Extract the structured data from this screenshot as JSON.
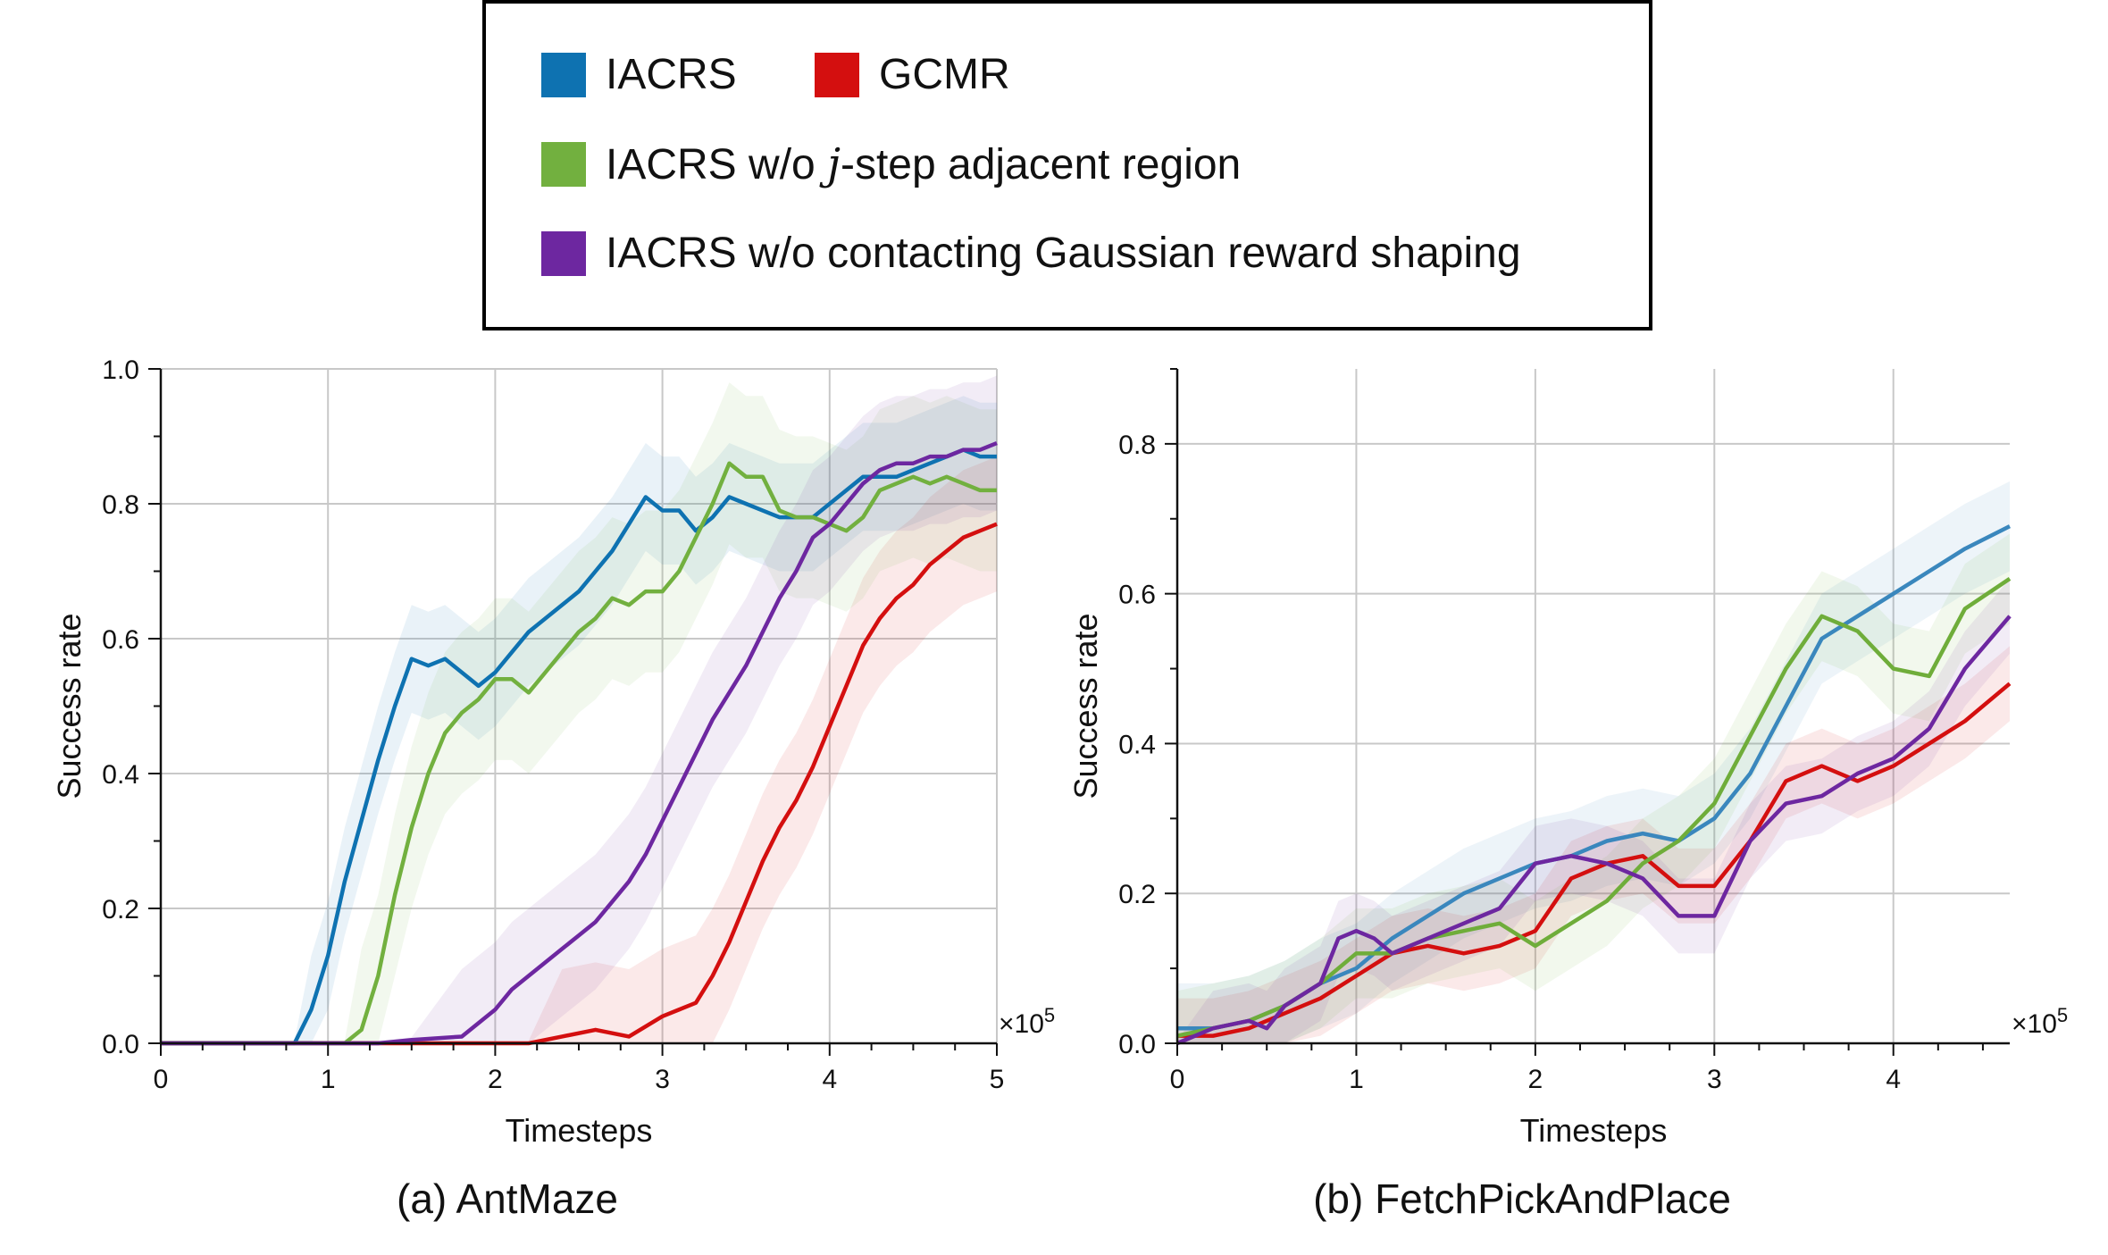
{
  "legend": {
    "items": [
      {
        "label": "IACRS",
        "color": "#0e72b1"
      },
      {
        "label": "GCMR",
        "color": "#d40f0f"
      },
      {
        "label_prefix": "IACRS w/o ",
        "label_italic": "j",
        "label_suffix": "-step adjacent region",
        "color": "#72b03f"
      },
      {
        "label": "IACRS w/o  contacting Gaussian reward shaping",
        "color": "#6d27a0"
      }
    ]
  },
  "chart_data": [
    {
      "type": "line",
      "caption": "(a) AntMaze",
      "xlabel": "Timesteps",
      "ylabel": "Success rate",
      "x_multiplier": "×10",
      "x_multiplier_exp": "5",
      "xlim": [
        0,
        5
      ],
      "ylim": [
        0,
        1.0
      ],
      "xticks": [
        "0",
        "1",
        "2",
        "3",
        "4",
        "5"
      ],
      "yticks": [
        "0.0",
        "0.2",
        "0.4",
        "0.6",
        "0.8",
        "1.0"
      ],
      "grid": true,
      "shaded_bands": true,
      "series": [
        {
          "name": "IACRS",
          "color": "#0e72b1",
          "x": [
            0,
            0.5,
            0.8,
            0.9,
            1.0,
            1.1,
            1.2,
            1.3,
            1.4,
            1.5,
            1.6,
            1.7,
            1.8,
            1.9,
            2.0,
            2.1,
            2.2,
            2.3,
            2.4,
            2.5,
            2.6,
            2.7,
            2.8,
            2.9,
            3.0,
            3.1,
            3.2,
            3.3,
            3.4,
            3.5,
            3.6,
            3.7,
            3.8,
            3.9,
            4.0,
            4.1,
            4.2,
            4.3,
            4.4,
            4.5,
            4.6,
            4.7,
            4.8,
            4.9,
            5.0
          ],
          "y": [
            0.0,
            0.0,
            0.0,
            0.05,
            0.13,
            0.24,
            0.33,
            0.42,
            0.5,
            0.57,
            0.56,
            0.57,
            0.55,
            0.53,
            0.55,
            0.58,
            0.61,
            0.63,
            0.65,
            0.67,
            0.7,
            0.73,
            0.77,
            0.81,
            0.79,
            0.79,
            0.76,
            0.78,
            0.81,
            0.8,
            0.79,
            0.78,
            0.78,
            0.78,
            0.8,
            0.82,
            0.84,
            0.84,
            0.84,
            0.85,
            0.86,
            0.87,
            0.88,
            0.87,
            0.87
          ]
        },
        {
          "name": "GCMR",
          "color": "#d40f0f",
          "x": [
            0,
            2.2,
            2.4,
            2.6,
            2.8,
            3.0,
            3.1,
            3.2,
            3.3,
            3.4,
            3.5,
            3.6,
            3.7,
            3.8,
            3.9,
            4.0,
            4.1,
            4.2,
            4.3,
            4.4,
            4.5,
            4.6,
            4.7,
            4.8,
            4.9,
            5.0
          ],
          "y": [
            0.0,
            0.0,
            0.01,
            0.02,
            0.01,
            0.04,
            0.05,
            0.06,
            0.1,
            0.15,
            0.21,
            0.27,
            0.32,
            0.36,
            0.41,
            0.47,
            0.53,
            0.59,
            0.63,
            0.66,
            0.68,
            0.71,
            0.73,
            0.75,
            0.76,
            0.77
          ]
        },
        {
          "name": "IACRS w/o j-step adjacent region",
          "color": "#72b03f",
          "x": [
            0,
            1.1,
            1.2,
            1.3,
            1.4,
            1.5,
            1.6,
            1.7,
            1.8,
            1.9,
            2.0,
            2.1,
            2.2,
            2.3,
            2.4,
            2.5,
            2.6,
            2.7,
            2.8,
            2.9,
            3.0,
            3.1,
            3.2,
            3.3,
            3.4,
            3.5,
            3.6,
            3.7,
            3.8,
            3.9,
            4.0,
            4.1,
            4.2,
            4.3,
            4.4,
            4.5,
            4.6,
            4.7,
            4.8,
            4.9,
            5.0
          ],
          "y": [
            0.0,
            0.0,
            0.02,
            0.1,
            0.22,
            0.32,
            0.4,
            0.46,
            0.49,
            0.51,
            0.54,
            0.54,
            0.52,
            0.55,
            0.58,
            0.61,
            0.63,
            0.66,
            0.65,
            0.67,
            0.67,
            0.7,
            0.75,
            0.8,
            0.86,
            0.84,
            0.84,
            0.79,
            0.78,
            0.78,
            0.77,
            0.76,
            0.78,
            0.82,
            0.83,
            0.84,
            0.83,
            0.84,
            0.83,
            0.82,
            0.82
          ]
        },
        {
          "name": "IACRS w/o contacting Gaussian reward shaping",
          "color": "#6d27a0",
          "x": [
            0,
            1.3,
            1.5,
            1.8,
            1.9,
            2.0,
            2.1,
            2.2,
            2.3,
            2.4,
            2.5,
            2.6,
            2.7,
            2.8,
            2.9,
            3.0,
            3.1,
            3.2,
            3.3,
            3.4,
            3.5,
            3.6,
            3.7,
            3.8,
            3.9,
            4.0,
            4.1,
            4.2,
            4.3,
            4.4,
            4.5,
            4.6,
            4.7,
            4.8,
            4.9,
            5.0
          ],
          "y": [
            0.0,
            0.0,
            0.005,
            0.01,
            0.03,
            0.05,
            0.08,
            0.1,
            0.12,
            0.14,
            0.16,
            0.18,
            0.21,
            0.24,
            0.28,
            0.33,
            0.38,
            0.43,
            0.48,
            0.52,
            0.56,
            0.61,
            0.66,
            0.7,
            0.75,
            0.77,
            0.8,
            0.83,
            0.85,
            0.86,
            0.86,
            0.87,
            0.87,
            0.88,
            0.88,
            0.89
          ]
        }
      ]
    },
    {
      "type": "line",
      "caption": "(b) FetchPickAndPlace",
      "xlabel": "Timesteps",
      "ylabel": "Success rate",
      "x_multiplier": "×10",
      "x_multiplier_exp": "5",
      "xlim": [
        0,
        4.65
      ],
      "ylim": [
        0,
        0.9
      ],
      "xticks": [
        "0",
        "1",
        "2",
        "3",
        "4"
      ],
      "yticks": [
        "0.0",
        "0.2",
        "0.4",
        "0.6",
        "0.8"
      ],
      "grid": true,
      "shaded_bands": true,
      "series": [
        {
          "name": "IACRS",
          "color": "#3a87bd",
          "x": [
            0,
            0.2,
            0.4,
            0.6,
            0.8,
            1.0,
            1.2,
            1.4,
            1.6,
            1.8,
            2.0,
            2.2,
            2.4,
            2.6,
            2.8,
            3.0,
            3.2,
            3.4,
            3.6,
            3.8,
            4.0,
            4.2,
            4.4,
            4.65
          ],
          "y": [
            0.02,
            0.02,
            0.03,
            0.05,
            0.08,
            0.1,
            0.14,
            0.17,
            0.2,
            0.22,
            0.24,
            0.25,
            0.27,
            0.28,
            0.27,
            0.3,
            0.36,
            0.45,
            0.54,
            0.57,
            0.6,
            0.63,
            0.66,
            0.69
          ]
        },
        {
          "name": "GCMR",
          "color": "#d40f0f",
          "x": [
            0,
            0.2,
            0.4,
            0.6,
            0.8,
            1.0,
            1.2,
            1.4,
            1.6,
            1.8,
            2.0,
            2.2,
            2.4,
            2.6,
            2.8,
            3.0,
            3.2,
            3.4,
            3.6,
            3.8,
            4.0,
            4.2,
            4.4,
            4.65
          ],
          "y": [
            0.01,
            0.01,
            0.02,
            0.04,
            0.06,
            0.09,
            0.12,
            0.13,
            0.12,
            0.13,
            0.15,
            0.22,
            0.24,
            0.25,
            0.21,
            0.21,
            0.27,
            0.35,
            0.37,
            0.35,
            0.37,
            0.4,
            0.43,
            0.48
          ]
        },
        {
          "name": "IACRS w/o j-step adjacent region",
          "color": "#6fad3a",
          "x": [
            0,
            0.2,
            0.4,
            0.6,
            0.8,
            1.0,
            1.2,
            1.4,
            1.6,
            1.8,
            2.0,
            2.2,
            2.4,
            2.6,
            2.8,
            3.0,
            3.2,
            3.4,
            3.6,
            3.8,
            4.0,
            4.2,
            4.4,
            4.65
          ],
          "y": [
            0.01,
            0.02,
            0.03,
            0.05,
            0.08,
            0.12,
            0.12,
            0.14,
            0.15,
            0.16,
            0.13,
            0.16,
            0.19,
            0.24,
            0.27,
            0.32,
            0.41,
            0.5,
            0.57,
            0.55,
            0.5,
            0.49,
            0.58,
            0.62
          ]
        },
        {
          "name": "IACRS w/o contacting Gaussian reward shaping",
          "color": "#6d27a0",
          "x": [
            0,
            0.2,
            0.4,
            0.5,
            0.6,
            0.8,
            0.9,
            1.0,
            1.1,
            1.2,
            1.4,
            1.6,
            1.8,
            2.0,
            2.2,
            2.4,
            2.6,
            2.8,
            3.0,
            3.2,
            3.4,
            3.6,
            3.8,
            4.0,
            4.2,
            4.4,
            4.65
          ],
          "y": [
            0.0,
            0.02,
            0.03,
            0.02,
            0.05,
            0.08,
            0.14,
            0.15,
            0.14,
            0.12,
            0.14,
            0.16,
            0.18,
            0.24,
            0.25,
            0.24,
            0.22,
            0.17,
            0.17,
            0.27,
            0.32,
            0.33,
            0.36,
            0.38,
            0.42,
            0.5,
            0.57
          ]
        }
      ]
    }
  ]
}
